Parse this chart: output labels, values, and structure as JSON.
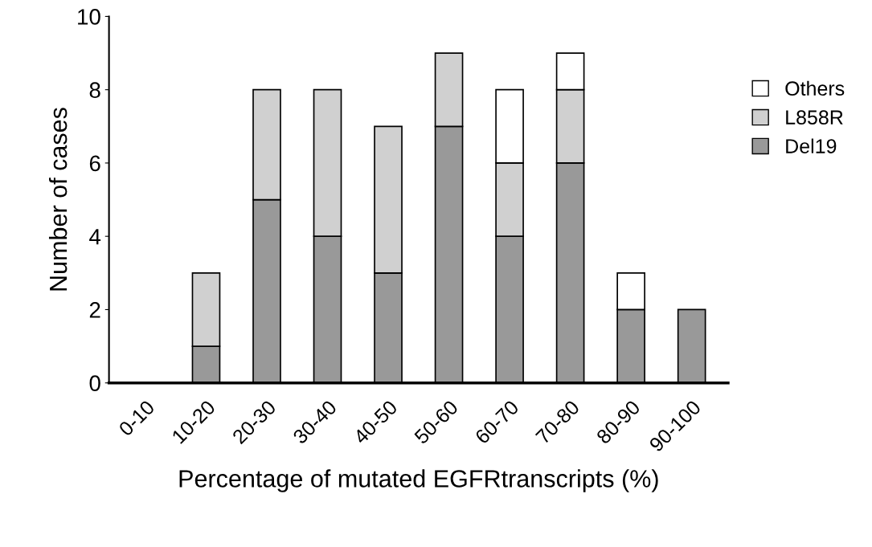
{
  "chart_data": {
    "type": "bar",
    "stacked": true,
    "xlabel": "Percentage of mutated EGFRtranscripts (%)",
    "ylabel": "Number of cases",
    "categories": [
      "0-10",
      "10-20",
      "20-30",
      "30-40",
      "40-50",
      "50-60",
      "60-70",
      "70-80",
      "80-90",
      "90-100"
    ],
    "series": [
      {
        "name": "Del19",
        "color": "#999999",
        "values": [
          0,
          1,
          5,
          4,
          3,
          7,
          4,
          6,
          2,
          2
        ]
      },
      {
        "name": "L858R",
        "color": "#d0d0d0",
        "values": [
          0,
          2,
          3,
          4,
          4,
          2,
          2,
          2,
          0,
          0
        ]
      },
      {
        "name": "Others",
        "color": "#ffffff",
        "values": [
          0,
          0,
          0,
          0,
          0,
          0,
          2,
          1,
          1,
          0
        ]
      }
    ],
    "ylim": [
      0,
      10
    ],
    "yticks": [
      0,
      2,
      4,
      6,
      8,
      10
    ],
    "grid": false,
    "legend": "right"
  }
}
